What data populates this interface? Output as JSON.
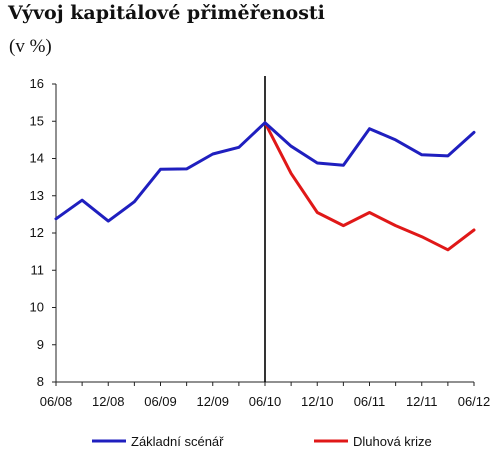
{
  "title": "Vývoj kapitálové přiměřenosti",
  "subtitle": "(v %)",
  "chart_data": {
    "type": "line",
    "title": "Vývoj kapitálové přiměřenosti",
    "ylabel": "(v %)",
    "ylim": [
      8,
      16
    ],
    "yticks": [
      8,
      9,
      10,
      11,
      12,
      13,
      14,
      15,
      16
    ],
    "x_tick_labels": [
      "06/08",
      "12/08",
      "06/09",
      "12/09",
      "06/10",
      "12/10",
      "06/11",
      "12/11",
      "06/12"
    ],
    "grid": false,
    "legend_placement": "bottom",
    "marker_line": "06/10",
    "series": [
      {
        "name": "Základní scénář",
        "color": "#1f1fbf",
        "x": [
          0,
          1,
          2,
          3,
          4,
          5,
          6,
          7,
          8,
          9,
          10,
          11,
          12,
          13,
          14,
          15,
          16
        ],
        "values": [
          12.38,
          12.88,
          12.32,
          12.84,
          13.71,
          13.72,
          14.12,
          14.3,
          14.96,
          14.33,
          13.88,
          13.82,
          14.8,
          14.5,
          14.1,
          14.07,
          14.7
        ]
      },
      {
        "name": "Dluhová krize",
        "color": "#e01818",
        "x": [
          8,
          9,
          10,
          11,
          12,
          13,
          14,
          15,
          16
        ],
        "values": [
          14.96,
          13.6,
          12.55,
          12.2,
          12.55,
          12.2,
          11.9,
          11.55,
          12.08
        ]
      }
    ]
  }
}
